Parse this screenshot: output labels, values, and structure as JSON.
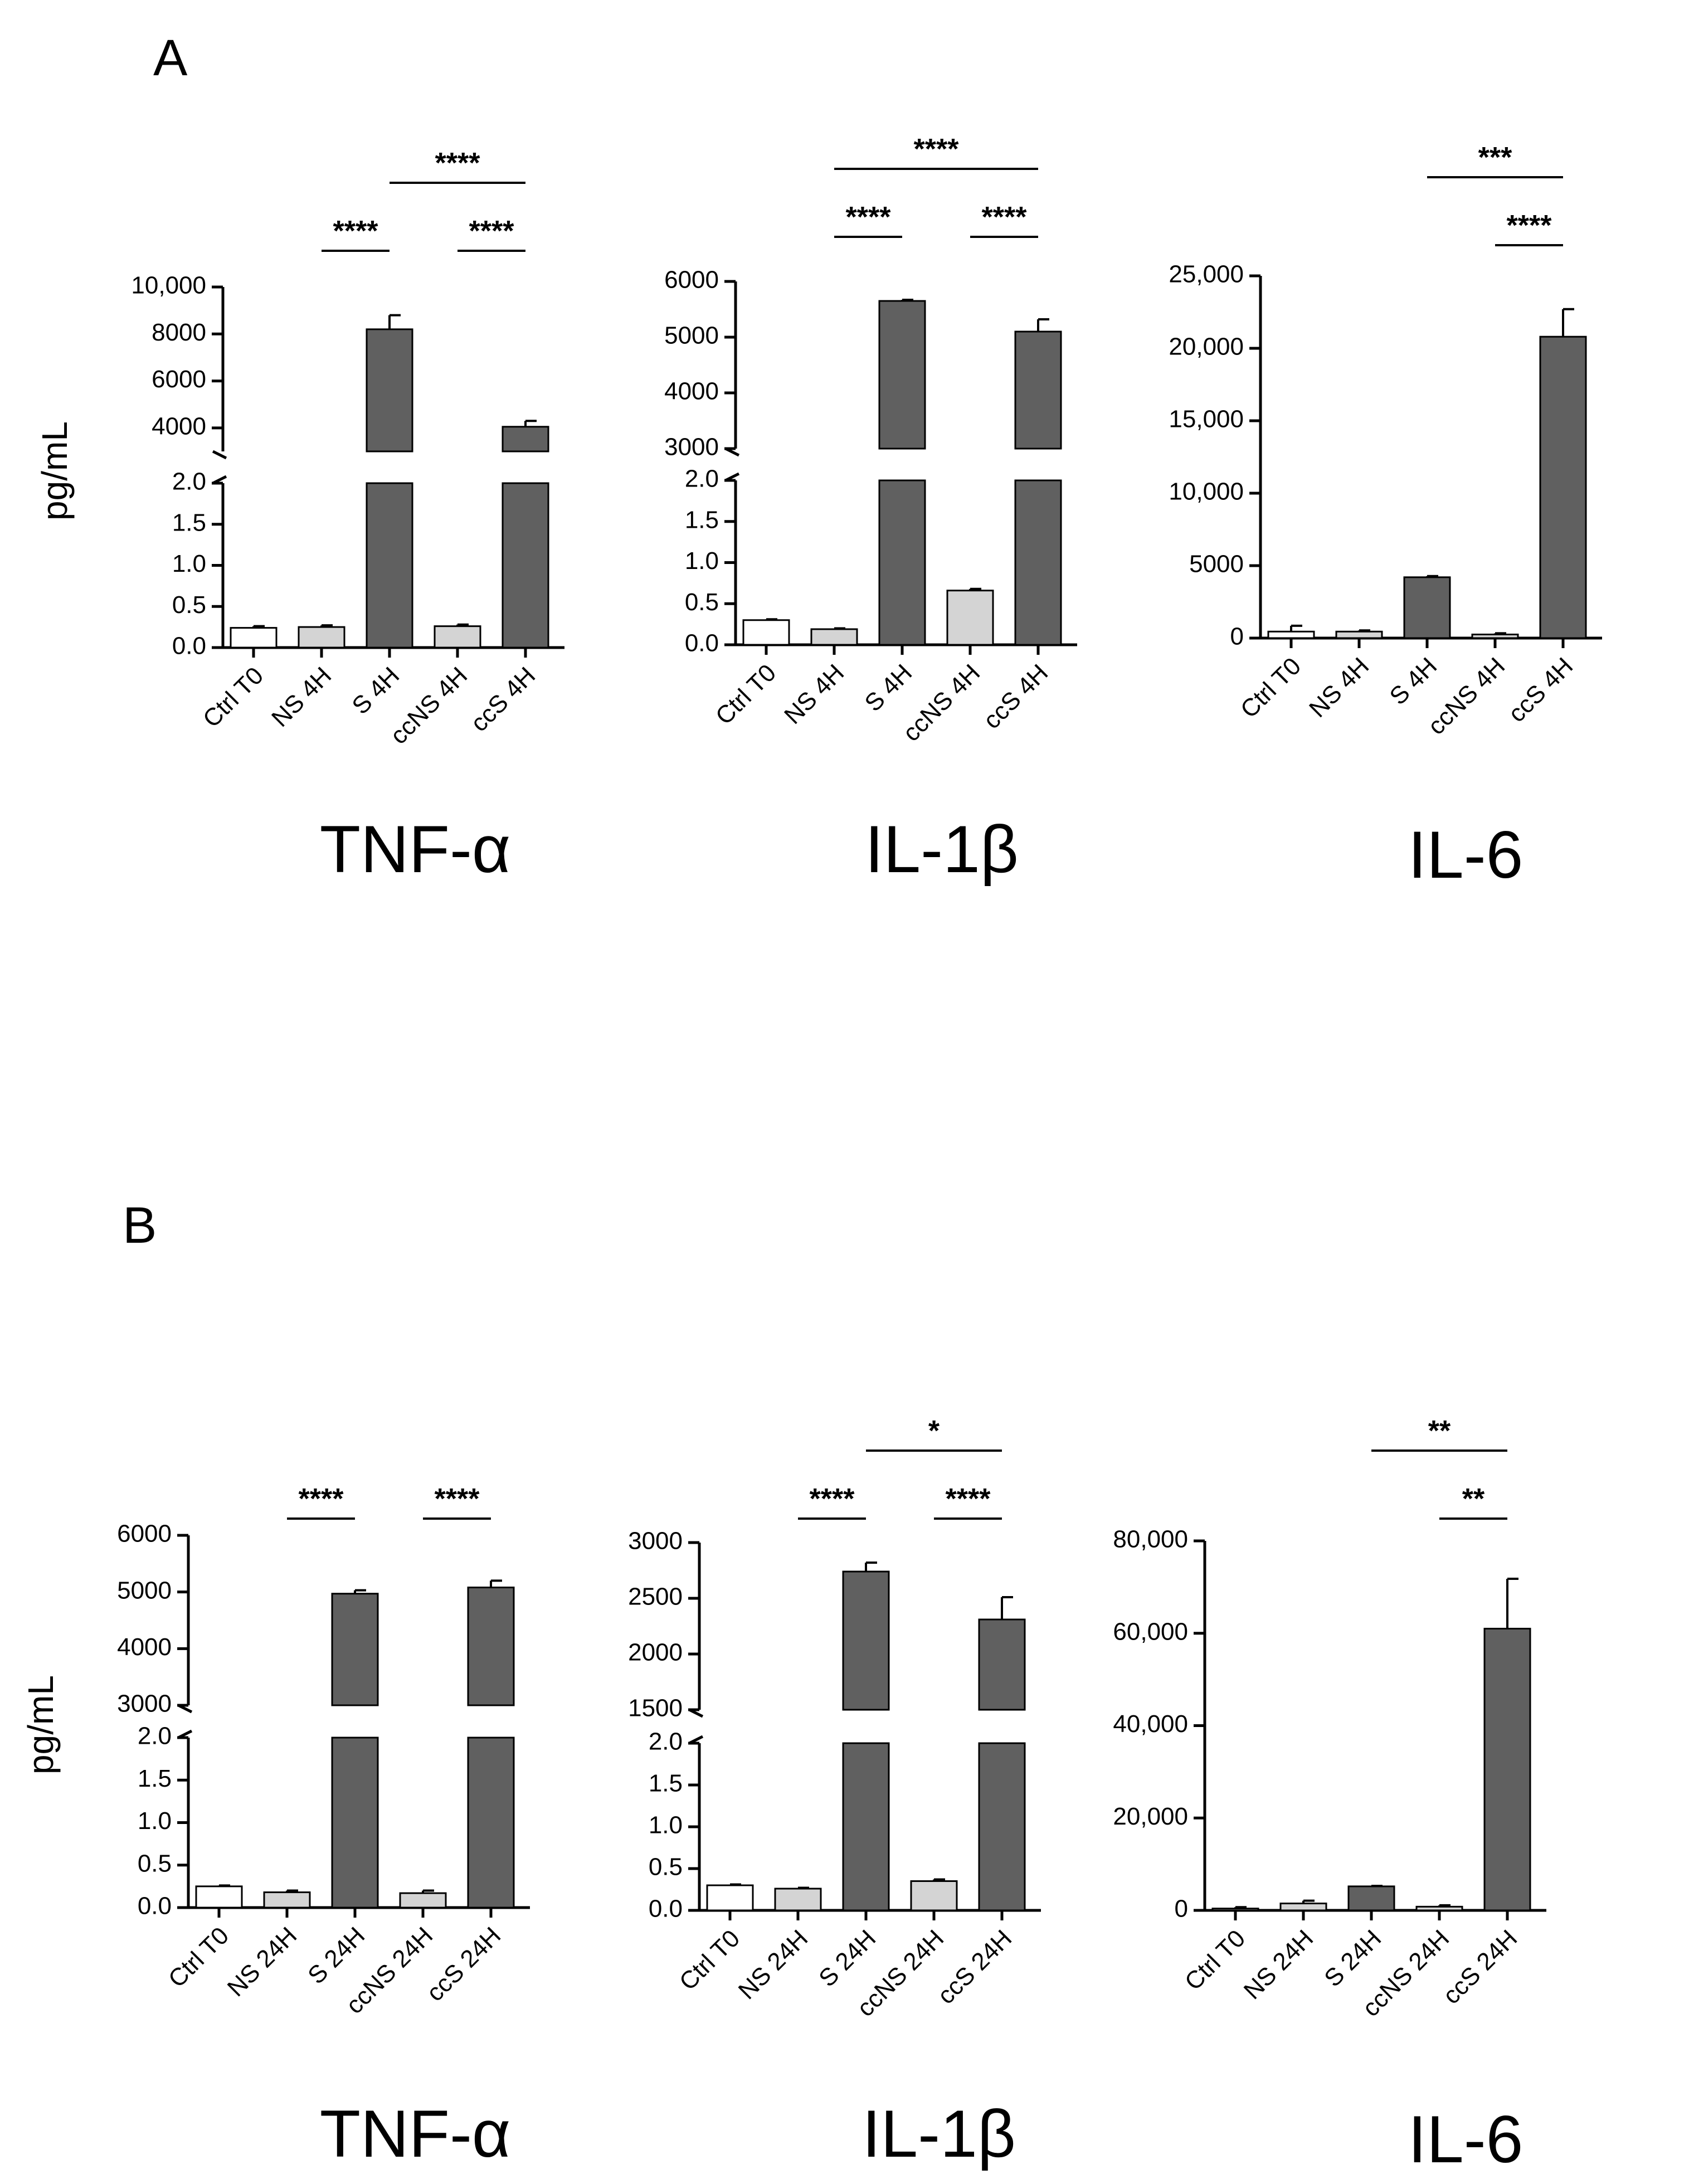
{
  "panels": [
    {
      "letter": "A",
      "ylabel": "pg/mL"
    },
    {
      "letter": "B",
      "ylabel": "pg/mL"
    }
  ],
  "colors": {
    "ctrl": "#ffffff",
    "ns": "#d4d4d4",
    "s": "#606060",
    "axis": "#000000"
  },
  "chart_data": [
    {
      "type": "bar",
      "panel": "A",
      "title": "TNF-α",
      "ylabel": "pg/mL",
      "categories": [
        "Ctrl T0",
        "NS 4H",
        "S 4H",
        "ccNS 4H",
        "ccS 4H"
      ],
      "values": [
        0.24,
        0.25,
        8200,
        0.26,
        4050
      ],
      "errors": [
        0.02,
        0.02,
        600,
        0.02,
        250
      ],
      "bar_colors": [
        "ctrl",
        "ns",
        "s",
        "ns",
        "s"
      ],
      "broken_axis": {
        "lower_ylim": [
          0,
          2.0
        ],
        "lower_ticks": [
          0.0,
          0.5,
          1.0,
          1.5,
          2.0
        ],
        "upper_ylim": [
          3000,
          10000
        ],
        "upper_ticks": [
          4000,
          6000,
          8000,
          10000
        ]
      },
      "tick_labels": [
        "0.0",
        "0.5",
        "1.0",
        "1.5",
        "2.0",
        "4000",
        "6000",
        "8000",
        "10,000"
      ],
      "significance": [
        {
          "from": 1,
          "to": 2,
          "label": "****",
          "level": 0
        },
        {
          "from": 3,
          "to": 4,
          "label": "****",
          "level": 0
        },
        {
          "from": 2,
          "to": 4,
          "label": "****",
          "level": 1
        }
      ]
    },
    {
      "type": "bar",
      "panel": "A",
      "title": "IL-1β",
      "ylabel": "pg/mL",
      "categories": [
        "Ctrl T0",
        "NS 4H",
        "S 4H",
        "ccNS 4H",
        "ccS 4H"
      ],
      "values": [
        0.3,
        0.19,
        5650,
        0.66,
        5100
      ],
      "errors": [
        0.01,
        0.01,
        20,
        0.02,
        220
      ],
      "bar_colors": [
        "ctrl",
        "ns",
        "s",
        "ns",
        "s"
      ],
      "broken_axis": {
        "lower_ylim": [
          0,
          2.0
        ],
        "lower_ticks": [
          0.0,
          0.5,
          1.0,
          1.5,
          2.0
        ],
        "upper_ylim": [
          3000,
          6000
        ],
        "upper_ticks": [
          3000,
          4000,
          5000,
          6000
        ]
      },
      "tick_labels": [
        "0.0",
        "0.5",
        "1.0",
        "1.5",
        "2.0",
        "3000",
        "4000",
        "5000",
        "6000"
      ],
      "significance": [
        {
          "from": 1,
          "to": 2,
          "label": "****",
          "level": 0
        },
        {
          "from": 3,
          "to": 4,
          "label": "****",
          "level": 0
        },
        {
          "from": 1,
          "to": 4,
          "label": "****",
          "level": 1
        }
      ]
    },
    {
      "type": "bar",
      "panel": "A",
      "title": "IL-6",
      "ylabel": "",
      "categories": [
        "Ctrl T0",
        "NS 4H",
        "S 4H",
        "ccNS 4H",
        "ccS 4H"
      ],
      "values": [
        450,
        450,
        4200,
        250,
        20800
      ],
      "errors": [
        400,
        80,
        80,
        80,
        1900
      ],
      "bar_colors": [
        "ctrl",
        "ns",
        "s",
        "ns",
        "s"
      ],
      "ylim": [
        0,
        25000
      ],
      "yticks": [
        0,
        5000,
        10000,
        15000,
        20000,
        25000
      ],
      "tick_labels": [
        "0",
        "5000",
        "10,000",
        "15,000",
        "20,000",
        "25,000"
      ],
      "significance": [
        {
          "from": 3,
          "to": 4,
          "label": "****",
          "level": 0
        },
        {
          "from": 2,
          "to": 4,
          "label": "***",
          "level": 1
        }
      ]
    },
    {
      "type": "bar",
      "panel": "B",
      "title": "TNF-α",
      "ylabel": "pg/mL",
      "categories": [
        "Ctrl T0",
        "NS 24H",
        "S 24H",
        "ccNS 24H",
        "ccS 24H"
      ],
      "values": [
        0.25,
        0.18,
        4970,
        0.17,
        5080
      ],
      "errors": [
        0.01,
        0.02,
        60,
        0.03,
        120
      ],
      "bar_colors": [
        "ctrl",
        "ns",
        "s",
        "ns",
        "s"
      ],
      "broken_axis": {
        "lower_ylim": [
          0,
          2.0
        ],
        "lower_ticks": [
          0.0,
          0.5,
          1.0,
          1.5,
          2.0
        ],
        "upper_ylim": [
          3000,
          6000
        ],
        "upper_ticks": [
          3000,
          4000,
          5000,
          6000
        ]
      },
      "tick_labels": [
        "0.0",
        "0.5",
        "1.0",
        "1.5",
        "2.0",
        "3000",
        "4000",
        "5000",
        "6000"
      ],
      "significance": [
        {
          "from": 1,
          "to": 2,
          "label": "****",
          "level": 0
        },
        {
          "from": 3,
          "to": 4,
          "label": "****",
          "level": 0
        }
      ]
    },
    {
      "type": "bar",
      "panel": "B",
      "title": "IL-1β",
      "ylabel": "",
      "categories": [
        "Ctrl T0",
        "NS 24H",
        "S 24H",
        "ccNS 24H",
        "ccS 24H"
      ],
      "values": [
        0.3,
        0.26,
        2740,
        0.35,
        2310
      ],
      "errors": [
        0.01,
        0.01,
        80,
        0.02,
        200
      ],
      "bar_colors": [
        "ctrl",
        "ns",
        "s",
        "ns",
        "s"
      ],
      "broken_axis": {
        "lower_ylim": [
          0,
          2.0
        ],
        "lower_ticks": [
          0.0,
          0.5,
          1.0,
          1.5,
          2.0
        ],
        "upper_ylim": [
          1500,
          3000
        ],
        "upper_ticks": [
          1500,
          2000,
          2500,
          3000
        ]
      },
      "tick_labels": [
        "0.0",
        "0.5",
        "1.0",
        "1.5",
        "2.0",
        "1500",
        "2000",
        "2500",
        "3000"
      ],
      "significance": [
        {
          "from": 1,
          "to": 2,
          "label": "****",
          "level": 0
        },
        {
          "from": 3,
          "to": 4,
          "label": "****",
          "level": 0
        },
        {
          "from": 2,
          "to": 4,
          "label": "*",
          "level": 1
        }
      ]
    },
    {
      "type": "bar",
      "panel": "B",
      "title": "IL-6",
      "ylabel": "",
      "categories": [
        "Ctrl T0",
        "NS 24H",
        "S 24H",
        "ccNS 24H",
        "ccS 24H"
      ],
      "values": [
        400,
        1500,
        5200,
        800,
        61000
      ],
      "errors": [
        300,
        600,
        100,
        300,
        10800
      ],
      "bar_colors": [
        "ctrl",
        "ns",
        "s",
        "ns",
        "s"
      ],
      "ylim": [
        0,
        80000
      ],
      "yticks": [
        0,
        20000,
        40000,
        60000,
        80000
      ],
      "tick_labels": [
        "0",
        "20,000",
        "40,000",
        "60,000",
        "80,000"
      ],
      "significance": [
        {
          "from": 3,
          "to": 4,
          "label": "**",
          "level": 0
        },
        {
          "from": 2,
          "to": 4,
          "label": "**",
          "level": 1
        }
      ]
    }
  ]
}
